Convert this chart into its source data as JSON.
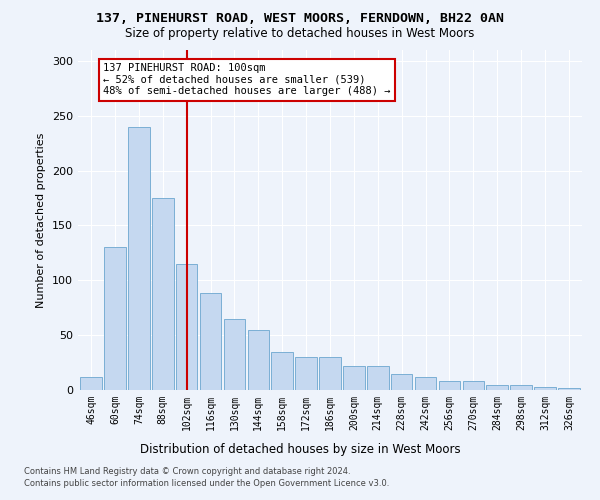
{
  "title1": "137, PINEHURST ROAD, WEST MOORS, FERNDOWN, BH22 0AN",
  "title2": "Size of property relative to detached houses in West Moors",
  "xlabel": "Distribution of detached houses by size in West Moors",
  "ylabel": "Number of detached properties",
  "categories": [
    "46sqm",
    "60sqm",
    "74sqm",
    "88sqm",
    "102sqm",
    "116sqm",
    "130sqm",
    "144sqm",
    "158sqm",
    "172sqm",
    "186sqm",
    "200sqm",
    "214sqm",
    "228sqm",
    "242sqm",
    "256sqm",
    "270sqm",
    "284sqm",
    "298sqm",
    "312sqm",
    "326sqm"
  ],
  "values": [
    12,
    130,
    240,
    175,
    115,
    88,
    65,
    55,
    35,
    30,
    30,
    22,
    22,
    15,
    12,
    8,
    8,
    5,
    5,
    3,
    2
  ],
  "bar_color": "#c5d8f0",
  "bar_edge_color": "#7bafd4",
  "vline_color": "#cc0000",
  "annotation_text": "137 PINEHURST ROAD: 100sqm\n← 52% of detached houses are smaller (539)\n48% of semi-detached houses are larger (488) →",
  "annotation_box_color": "white",
  "annotation_box_edge_color": "#cc0000",
  "ylim": [
    0,
    310
  ],
  "yticks": [
    0,
    50,
    100,
    150,
    200,
    250,
    300
  ],
  "footer1": "Contains HM Land Registry data © Crown copyright and database right 2024.",
  "footer2": "Contains public sector information licensed under the Open Government Licence v3.0.",
  "bg_color": "#eef3fb",
  "plot_bg_color": "#eef3fb"
}
